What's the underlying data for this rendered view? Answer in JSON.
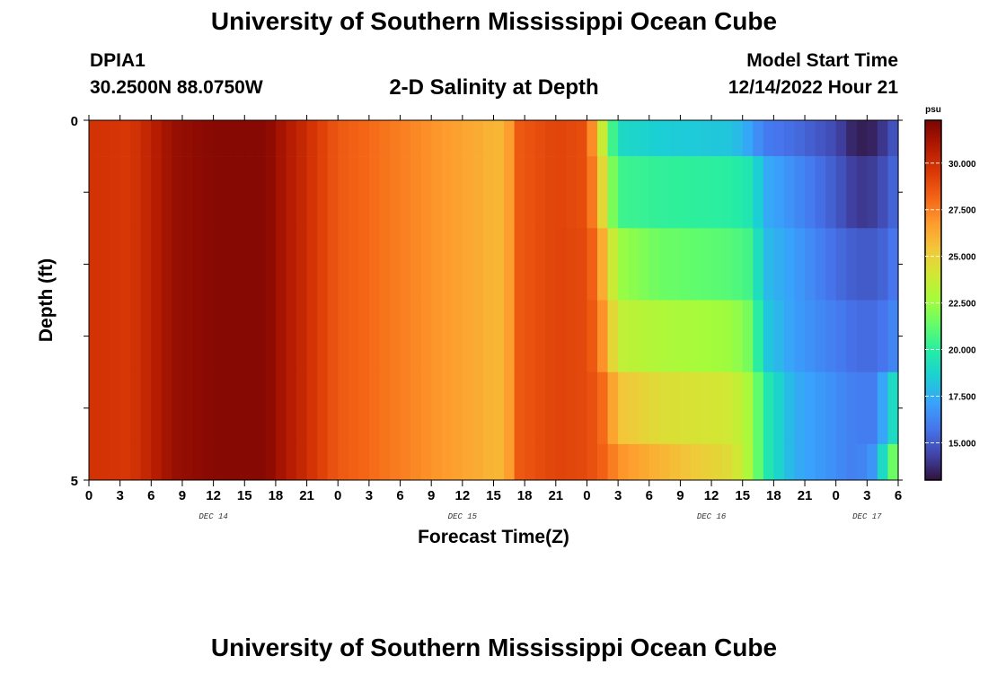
{
  "header": {
    "main_title": "University of Southern Mississippi Ocean Cube",
    "station_id": "DPIA1",
    "station_coords": "30.2500N  88.0750W",
    "plot_title": "2-D Salinity at Depth",
    "model_start_label": "Model Start Time",
    "model_start_value": "12/14/2022 Hour 21"
  },
  "footer": {
    "title": "University of Southern Mississippi Ocean Cube"
  },
  "chart_data": {
    "type": "heatmap",
    "title": "2-D Salinity at Depth",
    "xlabel": "Forecast Time(Z)",
    "ylabel": "Depth (ft)",
    "y_tick_labels": [
      "0",
      "5"
    ],
    "ylim": [
      0,
      5
    ],
    "x_tick_labels": [
      "0",
      "3",
      "6",
      "9",
      "12",
      "15",
      "18",
      "21",
      "0",
      "3",
      "6",
      "9",
      "12",
      "15",
      "18",
      "21",
      "0",
      "3",
      "6",
      "9",
      "12",
      "15",
      "18",
      "21",
      "0",
      "3",
      "6"
    ],
    "date_labels": [
      {
        "label": "DEC 14",
        "hour": 12
      },
      {
        "label": "DEC 15",
        "hour": 36
      },
      {
        "label": "DEC 16",
        "hour": 60
      },
      {
        "label": "DEC 17",
        "hour": 75
      }
    ],
    "x_hours_range": [
      0,
      78
    ],
    "depth_layers": [
      {
        "top": 0.0,
        "bottom": 0.5
      },
      {
        "top": 0.5,
        "bottom": 1.5
      },
      {
        "top": 1.5,
        "bottom": 2.5
      },
      {
        "top": 2.5,
        "bottom": 3.5
      },
      {
        "top": 3.5,
        "bottom": 4.5
      },
      {
        "top": 4.5,
        "bottom": 5.0
      }
    ],
    "salinity_keyframes": [
      {
        "hour": 0,
        "layers": [
          29.8,
          29.8,
          29.8,
          29.8,
          29.8,
          29.8
        ]
      },
      {
        "hour": 4,
        "layers": [
          29.6,
          29.6,
          29.6,
          29.6,
          29.6,
          29.6
        ]
      },
      {
        "hour": 8,
        "layers": [
          31.5,
          31.5,
          31.5,
          31.5,
          31.5,
          31.5
        ]
      },
      {
        "hour": 12,
        "layers": [
          32.0,
          32.0,
          32.0,
          32.0,
          32.0,
          32.0
        ]
      },
      {
        "hour": 17,
        "layers": [
          32.0,
          32.0,
          32.0,
          32.0,
          32.0,
          32.0
        ]
      },
      {
        "hour": 20,
        "layers": [
          30.5,
          30.5,
          30.5,
          30.5,
          30.5,
          30.5
        ]
      },
      {
        "hour": 24,
        "layers": [
          28.5,
          28.5,
          28.5,
          28.5,
          28.5,
          28.5
        ]
      },
      {
        "hour": 30,
        "layers": [
          27.5,
          27.5,
          27.5,
          27.5,
          27.5,
          27.5
        ]
      },
      {
        "hour": 36,
        "layers": [
          26.5,
          26.5,
          26.5,
          26.5,
          26.5,
          26.5
        ]
      },
      {
        "hour": 40,
        "layers": [
          25.8,
          25.8,
          25.8,
          25.8,
          25.8,
          25.8
        ]
      },
      {
        "hour": 41.5,
        "layers": [
          28.5,
          28.5,
          28.5,
          28.5,
          28.5,
          28.5
        ]
      },
      {
        "hour": 45,
        "layers": [
          29.2,
          29.2,
          29.2,
          29.2,
          29.2,
          29.2
        ]
      },
      {
        "hour": 48,
        "layers": [
          28.8,
          28.8,
          29.0,
          29.0,
          29.0,
          29.0
        ]
      },
      {
        "hour": 49,
        "layers": [
          25.5,
          26.5,
          27.5,
          28.0,
          28.5,
          28.5
        ]
      },
      {
        "hour": 50,
        "layers": [
          22.0,
          23.0,
          25.0,
          26.0,
          27.5,
          28.0
        ]
      },
      {
        "hour": 51,
        "layers": [
          19.0,
          20.5,
          22.5,
          23.5,
          25.5,
          27.0
        ]
      },
      {
        "hour": 55,
        "layers": [
          18.5,
          20.2,
          21.5,
          23.0,
          24.5,
          26.0
        ]
      },
      {
        "hour": 62,
        "layers": [
          18.2,
          20.0,
          21.0,
          22.5,
          24.0,
          24.5
        ]
      },
      {
        "hour": 64,
        "layers": [
          17.0,
          19.5,
          20.5,
          21.5,
          22.5,
          22.5
        ]
      },
      {
        "hour": 65,
        "layers": [
          16.0,
          17.5,
          18.0,
          18.5,
          20.0,
          20.0
        ]
      },
      {
        "hour": 68,
        "layers": [
          15.5,
          16.5,
          17.0,
          17.0,
          17.5,
          17.5
        ]
      },
      {
        "hour": 72,
        "layers": [
          14.5,
          15.0,
          15.5,
          16.0,
          16.5,
          16.5
        ]
      },
      {
        "hour": 74,
        "layers": [
          13.3,
          14.0,
          15.0,
          15.5,
          16.0,
          16.0
        ]
      },
      {
        "hour": 76,
        "layers": [
          13.5,
          14.2,
          15.0,
          15.5,
          16.0,
          17.0
        ]
      },
      {
        "hour": 77,
        "layers": [
          14.5,
          15.0,
          15.5,
          16.0,
          18.5,
          21.0
        ]
      },
      {
        "hour": 78,
        "layers": [
          15.0,
          15.5,
          16.0,
          16.5,
          19.5,
          22.0
        ]
      }
    ],
    "colorbar": {
      "unit_label": "psu",
      "min": 13.0,
      "max": 32.3,
      "tick_values": [
        15.0,
        17.5,
        20.0,
        22.5,
        25.0,
        27.5,
        30.0
      ],
      "tick_labels": [
        "15.000",
        "17.500",
        "20.000",
        "22.500",
        "25.000",
        "27.500",
        "30.000"
      ],
      "colors": [
        "#30123b",
        "#4145ab",
        "#4675ed",
        "#39a2fc",
        "#1bcfd4",
        "#24eca6",
        "#61fc6c",
        "#a4fc3b",
        "#d1e834",
        "#f3c63a",
        "#fe9b2d",
        "#f36315",
        "#d93806",
        "#b11901",
        "#7a0403"
      ]
    }
  }
}
